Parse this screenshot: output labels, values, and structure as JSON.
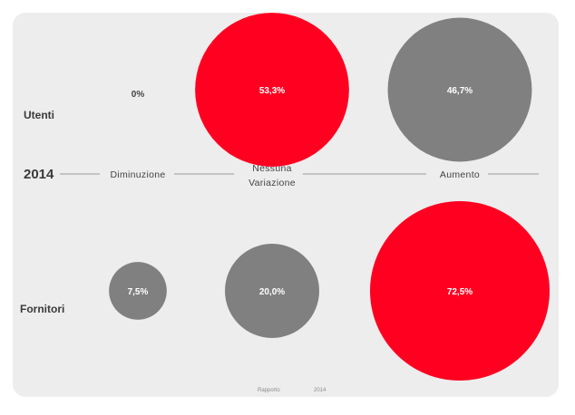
{
  "chart_data": {
    "type": "bubble",
    "year_label": "2014",
    "categories": [
      "Diminuzione",
      "Nessuna Variazione",
      "Aumento"
    ],
    "category_lines": [
      [
        "Diminuzione"
      ],
      [
        "Nessuna",
        "Variazione"
      ],
      [
        "Aumento"
      ]
    ],
    "rows": [
      {
        "name": "Utenti",
        "values": [
          0,
          53.3,
          46.7
        ],
        "labels": [
          "0%",
          "53,3%",
          "46,7%"
        ]
      },
      {
        "name": "Fornitori",
        "values": [
          7.5,
          20.0,
          72.5
        ],
        "labels": [
          "7,5%",
          "20,0%",
          "72,5%"
        ]
      }
    ],
    "colors": {
      "highlight": "#ff0021",
      "normal": "#808080"
    },
    "highlight_rule": "largest value in each row is red, others grey"
  },
  "footer": {
    "left": "Rapporto",
    "right": "2014"
  }
}
